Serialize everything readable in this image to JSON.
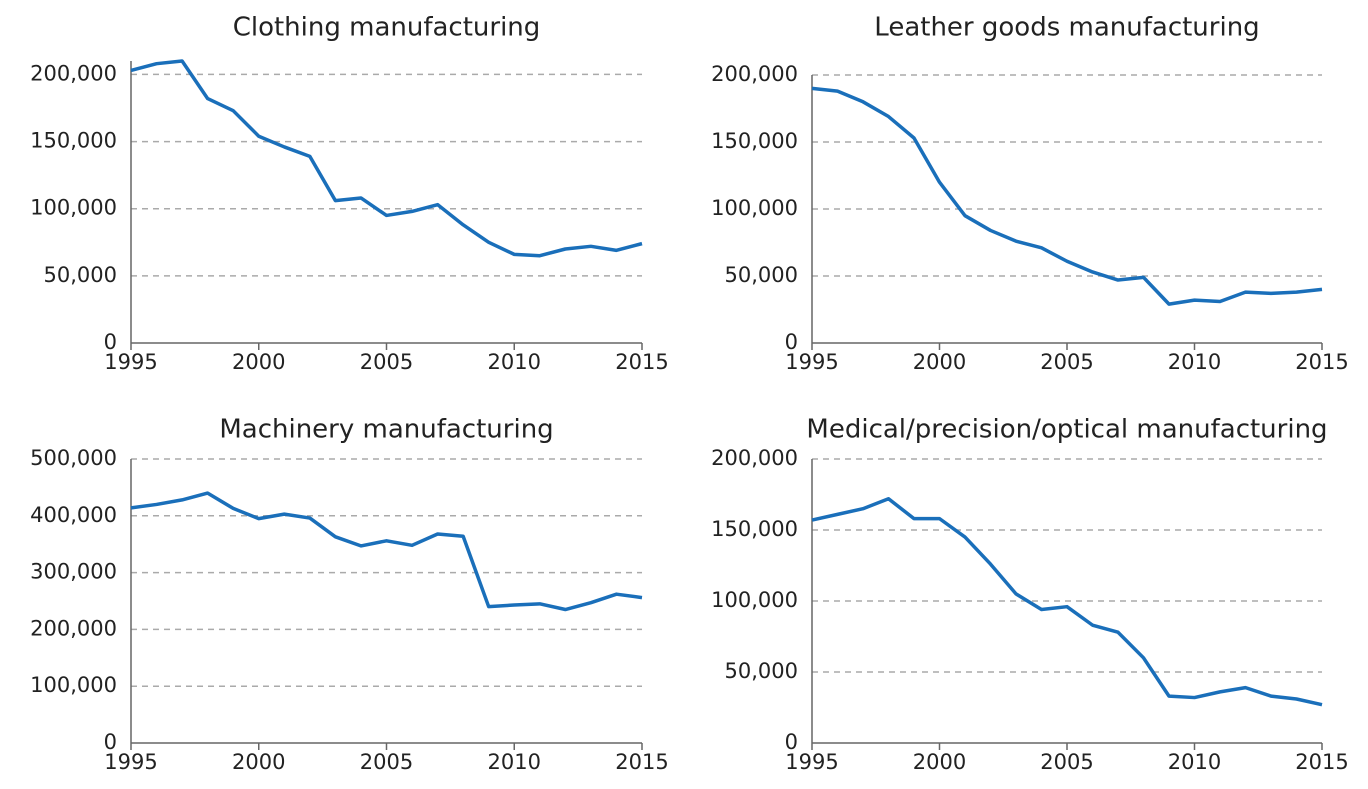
{
  "chart_data": [
    {
      "type": "line",
      "title": "Clothing manufacturing",
      "color": "#1a6fba",
      "x": [
        1995,
        1996,
        1997,
        1998,
        1999,
        2000,
        2001,
        2002,
        2003,
        2004,
        2005,
        2006,
        2007,
        2008,
        2009,
        2010,
        2011,
        2012,
        2013,
        2014,
        2015
      ],
      "values": [
        203000,
        208000,
        210000,
        182000,
        173000,
        154000,
        146000,
        139000,
        106000,
        108000,
        95000,
        98000,
        103000,
        88000,
        75000,
        66000,
        65000,
        70000,
        72000,
        69000,
        74000
      ],
      "xlim": [
        1995,
        2015
      ],
      "xticks": [
        1995,
        2000,
        2005,
        2010,
        2015
      ],
      "ylim": [
        0,
        210000
      ],
      "yticks": [
        0,
        {
          "value": 50000,
          "label": "50,000"
        },
        {
          "value": 100000,
          "label": "100,000"
        },
        {
          "value": 150000,
          "label": "150,000"
        },
        {
          "value": 200000,
          "label": "200,000"
        }
      ],
      "grid": true
    },
    {
      "type": "line",
      "title": "Leather goods manufacturing",
      "color": "#1a6fba",
      "x": [
        1995,
        1996,
        1997,
        1998,
        1999,
        2000,
        2001,
        2002,
        2003,
        2004,
        2005,
        2006,
        2007,
        2008,
        2009,
        2010,
        2011,
        2012,
        2013,
        2014,
        2015
      ],
      "values": [
        190000,
        188000,
        180000,
        169000,
        153000,
        120000,
        95000,
        84000,
        76000,
        71000,
        61000,
        53000,
        47000,
        49000,
        29000,
        32000,
        31000,
        38000,
        37000,
        38000,
        40000
      ],
      "xlim": [
        1995,
        2015
      ],
      "xticks": [
        1995,
        2000,
        2005,
        2010,
        2015
      ],
      "ylim": [
        0,
        200000
      ],
      "yticks": [
        0,
        {
          "value": 50000,
          "label": "50,000"
        },
        {
          "value": 100000,
          "label": "100,000"
        },
        {
          "value": 150000,
          "label": "150,000"
        },
        {
          "value": 200000,
          "label": "200,000"
        }
      ],
      "grid": true
    },
    {
      "type": "line",
      "title": "Machinery manufacturing",
      "color": "#1a6fba",
      "x": [
        1995,
        1996,
        1997,
        1998,
        1999,
        2000,
        2001,
        2002,
        2003,
        2004,
        2005,
        2006,
        2007,
        2008,
        2009,
        2010,
        2011,
        2012,
        2013,
        2014,
        2015
      ],
      "values": [
        414000,
        420000,
        428000,
        440000,
        413000,
        395000,
        403000,
        396000,
        363000,
        347000,
        356000,
        348000,
        368000,
        364000,
        240000,
        243000,
        245000,
        235000,
        247000,
        262000,
        256000
      ],
      "xlim": [
        1995,
        2015
      ],
      "xticks": [
        1995,
        2000,
        2005,
        2010,
        2015
      ],
      "ylim": [
        0,
        500000
      ],
      "yticks": [
        0,
        {
          "value": 100000,
          "label": "100,000"
        },
        {
          "value": 200000,
          "label": "200,000"
        },
        {
          "value": 300000,
          "label": "300,000"
        },
        {
          "value": 400000,
          "label": "400,000"
        },
        {
          "value": 500000,
          "label": "500,000"
        }
      ],
      "grid": true
    },
    {
      "type": "line",
      "title": "Medical/precision/optical manufacturing",
      "color": "#1a6fba",
      "x": [
        1995,
        1996,
        1997,
        1998,
        1999,
        2000,
        2001,
        2002,
        2003,
        2004,
        2005,
        2006,
        2007,
        2008,
        2009,
        2010,
        2011,
        2012,
        2013,
        2014,
        2015
      ],
      "values": [
        157000,
        161000,
        165000,
        172000,
        158000,
        158000,
        145000,
        126000,
        105000,
        94000,
        96000,
        83000,
        78000,
        60000,
        33000,
        32000,
        36000,
        39000,
        33000,
        31000,
        27000
      ],
      "xlim": [
        1995,
        2015
      ],
      "xticks": [
        1995,
        2000,
        2005,
        2010,
        2015
      ],
      "ylim": [
        0,
        200000
      ],
      "yticks": [
        0,
        {
          "value": 50000,
          "label": "50,000"
        },
        {
          "value": 100000,
          "label": "100,000"
        },
        {
          "value": 150000,
          "label": "150,000"
        },
        {
          "value": 200000,
          "label": "200,000"
        }
      ],
      "grid": true
    }
  ]
}
